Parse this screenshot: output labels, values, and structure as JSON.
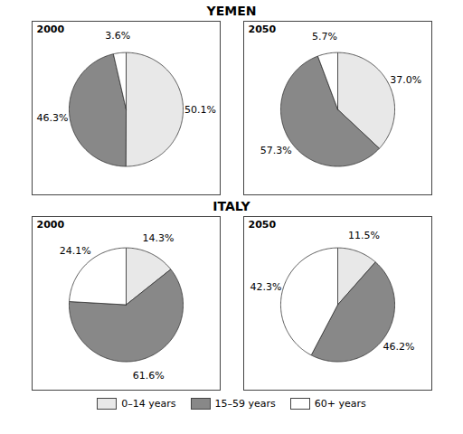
{
  "chart_data": [
    {
      "type": "pie",
      "title": "YEMEN",
      "subtitle": "2000",
      "categories": [
        "0–14 years",
        "15–59 years",
        "60+ years"
      ],
      "values": [
        50.1,
        46.3,
        3.6
      ],
      "value_labels": [
        "50.1%",
        "46.3%",
        "3.6%"
      ],
      "colors": [
        "#e8e8e8",
        "#888888",
        "#ffffff"
      ],
      "data_labels": true,
      "legend": "bottom"
    },
    {
      "type": "pie",
      "title": "YEMEN",
      "subtitle": "2050",
      "categories": [
        "0–14 years",
        "15–59 years",
        "60+ years"
      ],
      "values": [
        37.0,
        57.3,
        5.7
      ],
      "value_labels": [
        "37.0%",
        "57.3%",
        "5.7%"
      ],
      "colors": [
        "#e8e8e8",
        "#888888",
        "#ffffff"
      ],
      "data_labels": true,
      "legend": "bottom"
    },
    {
      "type": "pie",
      "title": "ITALY",
      "subtitle": "2000",
      "categories": [
        "0–14 years",
        "15–59 years",
        "60+ years"
      ],
      "values": [
        14.3,
        61.6,
        24.1
      ],
      "value_labels": [
        "14.3%",
        "61.6%",
        "24.1%"
      ],
      "colors": [
        "#e8e8e8",
        "#888888",
        "#ffffff"
      ],
      "data_labels": true,
      "legend": "bottom"
    },
    {
      "type": "pie",
      "title": "ITALY",
      "subtitle": "2050",
      "categories": [
        "0–14 years",
        "15–59 years",
        "60+ years"
      ],
      "values": [
        11.5,
        46.2,
        42.3
      ],
      "value_labels": [
        "11.5%",
        "46.2%",
        "42.3%"
      ],
      "colors": [
        "#e8e8e8",
        "#888888",
        "#ffffff"
      ],
      "data_labels": true,
      "legend": "bottom"
    }
  ]
}
